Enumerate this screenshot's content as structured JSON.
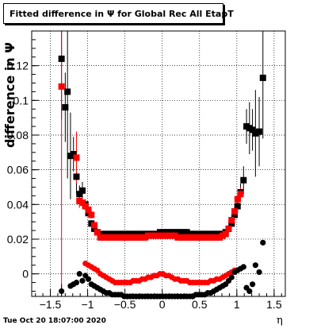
{
  "chart_data": {
    "type": "scatter",
    "title": "Fitted difference in  Ψ  for Global Rec All EtapT",
    "xlabel": "η",
    "ylabel": "difference in  Ψ",
    "xlim": [
      -1.75,
      1.65
    ],
    "ylim": [
      -0.013,
      0.14
    ],
    "grid": true,
    "x_ticks": [
      -1.5,
      -1,
      -0.5,
      0,
      0.5,
      1,
      1.5
    ],
    "x_tick_labels": [
      "−1.5",
      "−1",
      "−0.5",
      "0",
      "0.5",
      "1",
      "1.5"
    ],
    "y_ticks": [
      0,
      0.02,
      0.04,
      0.06,
      0.08,
      0.1,
      0.12
    ],
    "y_tick_labels": [
      "0",
      "0.02",
      "0.04",
      "0.06",
      "0.08",
      "0.1",
      "0.12"
    ],
    "series": [
      {
        "marker": "square",
        "color": "#000000",
        "x": [
          -1.35,
          -1.3,
          -1.27,
          -1.23,
          -1.19,
          -1.15,
          -1.11,
          -1.07,
          -1.03,
          -0.99,
          -0.95,
          -0.91,
          -0.87,
          -0.83,
          -0.79,
          -0.75,
          -0.71,
          -0.67,
          -0.63,
          -0.59,
          -0.55,
          -0.51,
          -0.47,
          -0.43,
          -0.39,
          -0.35,
          -0.31,
          -0.27,
          -0.23,
          -0.19,
          -0.15,
          -0.11,
          -0.07,
          -0.03,
          0.01,
          0.05,
          0.09,
          0.13,
          0.17,
          0.21,
          0.25,
          0.29,
          0.33,
          0.37,
          0.41,
          0.45,
          0.49,
          0.53,
          0.57,
          0.61,
          0.65,
          0.69,
          0.73,
          0.77,
          0.81,
          0.85,
          0.89,
          0.93,
          0.97,
          1.01,
          1.05,
          1.09,
          1.13,
          1.17,
          1.21,
          1.25,
          1.3,
          1.35
        ],
        "y": [
          0.124,
          0.096,
          0.105,
          0.068,
          0.069,
          0.056,
          0.046,
          0.048,
          0.04,
          0.035,
          0.029,
          0.026,
          0.024,
          0.023,
          0.023,
          0.023,
          0.023,
          0.023,
          0.023,
          0.023,
          0.023,
          0.023,
          0.023,
          0.023,
          0.023,
          0.023,
          0.023,
          0.023,
          0.023,
          0.023,
          0.023,
          0.023,
          0.023,
          0.024,
          0.024,
          0.024,
          0.024,
          0.024,
          0.024,
          0.024,
          0.024,
          0.024,
          0.024,
          0.023,
          0.023,
          0.023,
          0.023,
          0.023,
          0.023,
          0.023,
          0.023,
          0.023,
          0.023,
          0.023,
          0.023,
          0.024,
          0.026,
          0.029,
          0.034,
          0.039,
          0.047,
          0.054,
          0.085,
          0.084,
          0.083,
          0.081,
          0.082,
          0.113
        ],
        "err": [
          0.035,
          0.02,
          0.05,
          0.025,
          0.01,
          0.01,
          0.005,
          0.005,
          0.003,
          0.002,
          0.002,
          0.001,
          0.001,
          0.001,
          0.001,
          0.001,
          0.001,
          0.001,
          0.001,
          0.001,
          0.001,
          0.001,
          0.001,
          0.001,
          0.001,
          0.001,
          0.001,
          0.001,
          0.001,
          0.001,
          0.001,
          0.001,
          0.001,
          0.001,
          0.001,
          0.001,
          0.001,
          0.001,
          0.001,
          0.001,
          0.001,
          0.001,
          0.001,
          0.001,
          0.001,
          0.001,
          0.001,
          0.001,
          0.001,
          0.001,
          0.001,
          0.001,
          0.001,
          0.001,
          0.001,
          0.001,
          0.002,
          0.002,
          0.003,
          0.004,
          0.005,
          0.008,
          0.01,
          0.015,
          0.012,
          0.025,
          0.02,
          0.035
        ]
      },
      {
        "marker": "square",
        "color": "#ff0000",
        "x": [
          -1.35,
          -1.15,
          -1.11,
          -1.07,
          -1.03,
          -0.99,
          -0.95,
          -0.91,
          -0.87,
          -0.83,
          -0.79,
          -0.75,
          -0.71,
          -0.67,
          -0.63,
          -0.59,
          -0.55,
          -0.51,
          -0.47,
          -0.43,
          -0.39,
          -0.35,
          -0.31,
          -0.27,
          -0.23,
          -0.19,
          -0.15,
          -0.11,
          -0.07,
          -0.03,
          0.01,
          0.05,
          0.09,
          0.13,
          0.17,
          0.21,
          0.25,
          0.29,
          0.33,
          0.37,
          0.41,
          0.45,
          0.49,
          0.53,
          0.57,
          0.61,
          0.65,
          0.69,
          0.73,
          0.77,
          0.81,
          0.85,
          0.89,
          0.93,
          0.97,
          1.01,
          1.05
        ],
        "y": [
          0.108,
          0.067,
          0.042,
          0.041,
          0.039,
          0.037,
          0.034,
          0.028,
          0.024,
          0.021,
          0.021,
          0.021,
          0.021,
          0.021,
          0.021,
          0.021,
          0.021,
          0.021,
          0.021,
          0.021,
          0.021,
          0.021,
          0.021,
          0.021,
          0.021,
          0.022,
          0.022,
          0.022,
          0.022,
          0.022,
          0.022,
          0.022,
          0.022,
          0.022,
          0.022,
          0.021,
          0.021,
          0.021,
          0.021,
          0.021,
          0.021,
          0.021,
          0.021,
          0.021,
          0.021,
          0.021,
          0.021,
          0.021,
          0.021,
          0.021,
          0.022,
          0.023,
          0.026,
          0.031,
          0.036,
          0.043,
          0.046
        ],
        "err": [
          0.13,
          0.015,
          0.004,
          0.003,
          0.002,
          0.002,
          0.002,
          0.001,
          0.001,
          0.001,
          0.001,
          0.001,
          0.001,
          0.001,
          0.001,
          0.001,
          0.001,
          0.001,
          0.001,
          0.001,
          0.001,
          0.001,
          0.001,
          0.001,
          0.001,
          0.001,
          0.001,
          0.001,
          0.001,
          0.001,
          0.001,
          0.001,
          0.001,
          0.001,
          0.001,
          0.001,
          0.001,
          0.001,
          0.001,
          0.001,
          0.001,
          0.001,
          0.001,
          0.001,
          0.001,
          0.001,
          0.001,
          0.001,
          0.001,
          0.001,
          0.001,
          0.001,
          0.002,
          0.002,
          0.003,
          0.003,
          0.004
        ]
      },
      {
        "marker": "circle",
        "color": "#ff0000",
        "x": [
          -1.03,
          -0.99,
          -0.95,
          -0.91,
          -0.87,
          -0.83,
          -0.79,
          -0.75,
          -0.71,
          -0.67,
          -0.63,
          -0.59,
          -0.55,
          -0.51,
          -0.47,
          -0.43,
          -0.39,
          -0.35,
          -0.31,
          -0.27,
          -0.23,
          -0.19,
          -0.15,
          -0.11,
          -0.07,
          -0.03,
          0.01,
          0.05,
          0.09,
          0.13,
          0.17,
          0.21,
          0.25,
          0.29,
          0.33,
          0.37,
          0.41,
          0.45,
          0.49,
          0.53,
          0.57,
          0.61,
          0.65,
          0.69,
          0.73,
          0.77,
          0.81,
          0.85,
          0.89,
          0.93,
          0.97
        ],
        "y": [
          0.006,
          0.005,
          0.004,
          0.003,
          0.002,
          0.0,
          -0.001,
          -0.002,
          -0.003,
          -0.004,
          -0.005,
          -0.005,
          -0.005,
          -0.005,
          -0.005,
          -0.005,
          -0.004,
          -0.004,
          -0.004,
          -0.003,
          -0.003,
          -0.002,
          -0.002,
          -0.001,
          -0.001,
          0.0,
          0.0,
          -0.001,
          -0.001,
          -0.002,
          -0.003,
          -0.003,
          -0.004,
          -0.004,
          -0.004,
          -0.005,
          -0.005,
          -0.005,
          -0.005,
          -0.005,
          -0.005,
          -0.005,
          -0.004,
          -0.004,
          -0.003,
          -0.003,
          -0.002,
          -0.001,
          0.0,
          0.001,
          0.002
        ],
        "err": []
      },
      {
        "marker": "circle",
        "color": "#000000",
        "x": [
          -1.35,
          -1.23,
          -1.19,
          -1.15,
          -1.11,
          -1.07,
          -1.03,
          -0.99,
          -0.95,
          -0.91,
          -0.87,
          -0.83,
          -0.79,
          -0.75,
          -0.71,
          -0.67,
          -0.63,
          -0.59,
          -0.55,
          -0.51,
          -0.47,
          -0.43,
          -0.39,
          -0.35,
          -0.31,
          -0.27,
          -0.23,
          -0.19,
          -0.15,
          -0.11,
          -0.07,
          -0.03,
          0.01,
          0.05,
          0.09,
          0.13,
          0.17,
          0.21,
          0.25,
          0.29,
          0.33,
          0.37,
          0.41,
          0.45,
          0.49,
          0.53,
          0.57,
          0.61,
          0.65,
          0.69,
          0.73,
          0.77,
          0.81,
          0.85,
          0.89,
          0.93,
          0.97,
          1.01,
          1.05,
          1.09,
          1.13,
          1.17,
          1.21,
          1.25,
          1.3,
          1.35
        ],
        "y": [
          -0.01,
          -0.007,
          -0.006,
          -0.005,
          0.0,
          -0.004,
          -0.001,
          -0.003,
          -0.006,
          -0.007,
          -0.008,
          -0.009,
          -0.01,
          -0.011,
          -0.011,
          -0.012,
          -0.012,
          -0.012,
          -0.012,
          -0.013,
          -0.013,
          -0.013,
          -0.013,
          -0.013,
          -0.013,
          -0.013,
          -0.013,
          -0.013,
          -0.013,
          -0.013,
          -0.013,
          -0.013,
          -0.013,
          -0.013,
          -0.013,
          -0.013,
          -0.013,
          -0.013,
          -0.013,
          -0.013,
          -0.013,
          -0.013,
          -0.013,
          -0.012,
          -0.012,
          -0.012,
          -0.012,
          -0.011,
          -0.011,
          -0.01,
          -0.009,
          -0.008,
          -0.007,
          -0.006,
          -0.004,
          -0.002,
          0.001,
          0.002,
          0.003,
          0.004,
          -0.008,
          -0.01,
          -0.006,
          0.005,
          0.001,
          0.018
        ],
        "err": [
          0.004,
          0,
          0,
          0,
          0,
          0,
          0,
          0,
          0,
          0,
          0,
          0,
          0,
          0,
          0,
          0,
          0,
          0,
          0,
          0,
          0,
          0,
          0,
          0,
          0,
          0,
          0,
          0,
          0,
          0,
          0,
          0,
          0,
          0,
          0,
          0,
          0,
          0,
          0,
          0,
          0,
          0,
          0,
          0,
          0,
          0,
          0,
          0,
          0,
          0,
          0,
          0,
          0,
          0,
          0,
          0,
          0,
          0,
          0,
          0,
          0,
          0,
          0,
          0,
          0,
          0
        ]
      }
    ]
  },
  "footer": {
    "timestamp": "Tue Oct 20 18:07:00 2020"
  }
}
